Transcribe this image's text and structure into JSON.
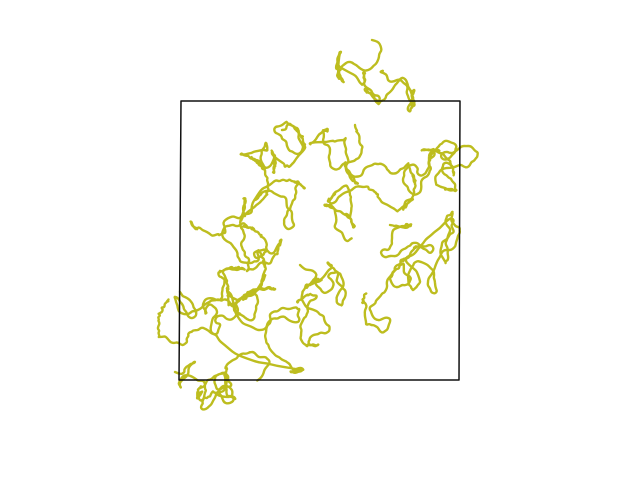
{
  "title": "",
  "colors": {
    "background": "#ffffff",
    "frame": "#111111",
    "path": "#bdbd1f"
  },
  "paths": [
    {
      "id": "cluster-top",
      "seed": 11
    },
    {
      "id": "cluster-upper-left",
      "seed": 23
    },
    {
      "id": "cluster-left-mid",
      "seed": 37
    },
    {
      "id": "cluster-center-upper",
      "seed": 41
    },
    {
      "id": "cluster-right-upper",
      "seed": 53
    },
    {
      "id": "cluster-right-mid",
      "seed": 67
    },
    {
      "id": "cluster-lower-left",
      "seed": 71
    },
    {
      "id": "cluster-center-lower",
      "seed": 83
    },
    {
      "id": "cluster-bottom-left",
      "seed": 97
    }
  ]
}
